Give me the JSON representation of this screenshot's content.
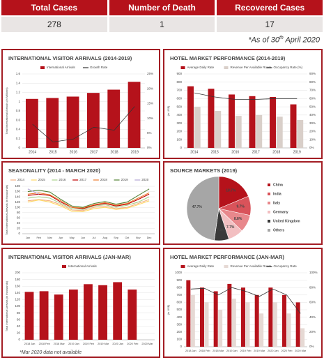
{
  "summary": {
    "columns": [
      "Total Cases",
      "Number of Death",
      "Recovered Cases"
    ],
    "values": [
      "278",
      "1",
      "17"
    ],
    "note_prefix": "*As of 30",
    "note_sup": "th",
    "note_suffix": "April 2020"
  },
  "chart_data": [
    {
      "type": "bar",
      "title": "INTERNATIONAL VISITOR ARRIVALS (2014-2019)",
      "ylabel": "Total International Arrivals (in Millions)",
      "categories": [
        "2014",
        "2015",
        "2016",
        "2017",
        "2018",
        "2019"
      ],
      "series": [
        {
          "name": "International Arrivals",
          "type": "bar",
          "color": "#b5121b",
          "values": [
            1.06,
            1.08,
            1.11,
            1.19,
            1.26,
            1.43
          ]
        },
        {
          "name": "Growth Rate",
          "type": "line",
          "axis": "y2",
          "color": "#333333",
          "values": [
            8,
            2,
            3,
            7,
            6,
            14
          ]
        }
      ],
      "ylim": [
        0,
        1.6
      ],
      "yticks": [
        0,
        0.2,
        0.4,
        0.6,
        0.8,
        1,
        1.2,
        1.4,
        1.6
      ],
      "y2lim": [
        0,
        25
      ],
      "y2ticks": [
        {
          "value": 0,
          "label": "0%"
        },
        {
          "value": 5,
          "label": "5%"
        },
        {
          "value": 10,
          "label": "10%"
        },
        {
          "value": 15,
          "label": "15%"
        },
        {
          "value": 20,
          "label": "20%"
        },
        {
          "value": 25,
          "label": "25%"
        }
      ],
      "grid": true
    },
    {
      "type": "bar",
      "title": "HOTEL MARKET PERFORMANCE (2014-2019)",
      "ylabel": "(in US$)",
      "categories": [
        "2014",
        "2015",
        "2016",
        "2017",
        "2018",
        "2019"
      ],
      "series": [
        {
          "name": "Average Daily Rate",
          "type": "bar",
          "color": "#b5121b",
          "values": [
            750,
            720,
            650,
            630,
            620,
            530
          ]
        },
        {
          "name": "Revenue Per Available Room",
          "type": "bar",
          "color": "#d9cfc9",
          "values": [
            500,
            450,
            390,
            400,
            380,
            340
          ]
        },
        {
          "name": "Occupancy Rate (%)",
          "type": "line",
          "axis": "y2",
          "color": "#333333",
          "values": [
            67,
            62,
            59,
            59,
            60,
            60
          ]
        }
      ],
      "ylim": [
        0,
        900
      ],
      "yticks": [
        0,
        100,
        200,
        300,
        400,
        500,
        600,
        700,
        800,
        900
      ],
      "y2lim": [
        0,
        90
      ],
      "y2ticks": [
        {
          "value": 0,
          "label": "0%"
        },
        {
          "value": 10,
          "label": "10%"
        },
        {
          "value": 20,
          "label": "20%"
        },
        {
          "value": 30,
          "label": "30%"
        },
        {
          "value": 40,
          "label": "40%"
        },
        {
          "value": 50,
          "label": "50%"
        },
        {
          "value": 60,
          "label": "60%"
        },
        {
          "value": 70,
          "label": "70%"
        },
        {
          "value": 80,
          "label": "80%"
        },
        {
          "value": 90,
          "label": "90%"
        }
      ],
      "grid": true
    },
    {
      "type": "line",
      "title": "SEASONALITY (2014 - MARCH 2020)",
      "ylabel": "Total International Arrivals (in thousands)",
      "categories": [
        "Jan",
        "Feb",
        "Mar",
        "Apr",
        "May",
        "Jun",
        "Jul",
        "Aug",
        "Sep",
        "Oct",
        "Nov",
        "Dec"
      ],
      "series": [
        {
          "name": "2014",
          "color": "#f4b183",
          "values": [
            125,
            130,
            125,
            110,
            90,
            88,
            100,
            105,
            95,
            100,
            115,
            130
          ]
        },
        {
          "name": "2015",
          "color": "#ffd966",
          "values": [
            120,
            128,
            120,
            105,
            85,
            84,
            95,
            100,
            92,
            97,
            110,
            125
          ]
        },
        {
          "name": "2016",
          "color": "#a9d18e",
          "values": [
            135,
            140,
            135,
            115,
            95,
            92,
            105,
            110,
            100,
            108,
            120,
            140
          ]
        },
        {
          "name": "2017",
          "color": "#c00000",
          "values": [
            145,
            150,
            145,
            120,
            100,
            95,
            108,
            115,
            105,
            112,
            130,
            150
          ]
        },
        {
          "name": "2018",
          "color": "#ed7d31",
          "values": [
            150,
            155,
            148,
            125,
            100,
            98,
            110,
            118,
            108,
            115,
            135,
            155
          ]
        },
        {
          "name": "2019",
          "color": "#548235",
          "values": [
            160,
            165,
            158,
            130,
            105,
            100,
            115,
            122,
            112,
            120,
            145,
            170
          ]
        },
        {
          "name": "2020",
          "color": "#b4a7d6",
          "values": [
            170,
            150,
            null,
            null,
            null,
            null,
            null,
            null,
            null,
            null,
            null,
            null
          ]
        }
      ],
      "ylim": [
        0,
        180
      ],
      "yticks": [
        0,
        20,
        40,
        60,
        80,
        100,
        120,
        140,
        160,
        180
      ],
      "grid": true
    },
    {
      "type": "pie",
      "title": "SOURCE MARKETS (2019)",
      "categories": [
        "China",
        "India",
        "Italy",
        "Germany",
        "United Kingdom",
        "Others"
      ],
      "values": [
        18.7,
        9.7,
        8.8,
        7.7,
        7.4,
        47.7
      ],
      "value_labels": [
        "18.7%",
        "9.7%",
        "8.8%",
        "7.7%",
        "7.4%",
        "47.7%"
      ],
      "colors": [
        "#b5121b",
        "#d9535a",
        "#e8888c",
        "#f2bfc1",
        "#3a3a3a",
        "#a6a6a6"
      ]
    },
    {
      "type": "bar",
      "title": "INTERNATIONAL VISITOR ARRIVALS (JAN-MAR)",
      "ylabel": "Total International Arrivals (in thousands)",
      "categories": [
        "2018 Jan",
        "2018 Feb",
        "2018 Mar",
        "2019 Jan",
        "2019 Feb",
        "2019 Mar",
        "2020 Jan",
        "2020 Feb",
        "2020 Mar"
      ],
      "series": [
        {
          "name": "International Arrivals",
          "type": "bar",
          "color": "#b5121b",
          "values": [
            143,
            145,
            135,
            150,
            166,
            163,
            172,
            150,
            null
          ]
        }
      ],
      "ylim": [
        0,
        200
      ],
      "yticks": [
        0,
        20,
        40,
        60,
        80,
        100,
        120,
        140,
        160,
        180,
        200
      ],
      "annotation": "*Mar 2020  data not available",
      "grid": true
    },
    {
      "type": "bar",
      "title": "HOTEL MARKET PERFORMANCE (JAN-MAR)",
      "ylabel": "(in US$)",
      "categories": [
        "2018 Jan",
        "2018 Feb",
        "2018 Mar",
        "2019 Jan",
        "2019 Feb",
        "2019 Mar",
        "2020 Jan",
        "2020 Feb",
        "2020 Mar"
      ],
      "series": [
        {
          "name": "Average Daily Rate",
          "type": "bar",
          "color": "#b5121b",
          "values": [
            900,
            800,
            750,
            850,
            800,
            700,
            800,
            700,
            600
          ]
        },
        {
          "name": "Revenue Per Available Room",
          "type": "bar",
          "color": "#e6d9d4",
          "values": [
            700,
            600,
            500,
            650,
            600,
            450,
            600,
            450,
            250
          ]
        },
        {
          "name": "Occupancy Rate",
          "type": "line",
          "axis": "y2",
          "color": "#333333",
          "values": [
            78,
            79,
            70,
            80,
            75,
            68,
            78,
            70,
            45
          ]
        }
      ],
      "ylim": [
        0,
        1000
      ],
      "yticks": [
        0,
        100,
        200,
        300,
        400,
        500,
        600,
        700,
        800,
        900,
        1000
      ],
      "y2lim": [
        0,
        100
      ],
      "y2ticks": [
        {
          "value": 0,
          "label": "0%"
        },
        {
          "value": 20,
          "label": "20%"
        },
        {
          "value": 40,
          "label": "40%"
        },
        {
          "value": 60,
          "label": "60%"
        },
        {
          "value": 80,
          "label": "80%"
        },
        {
          "value": 100,
          "label": "100%"
        }
      ],
      "grid": true
    }
  ]
}
